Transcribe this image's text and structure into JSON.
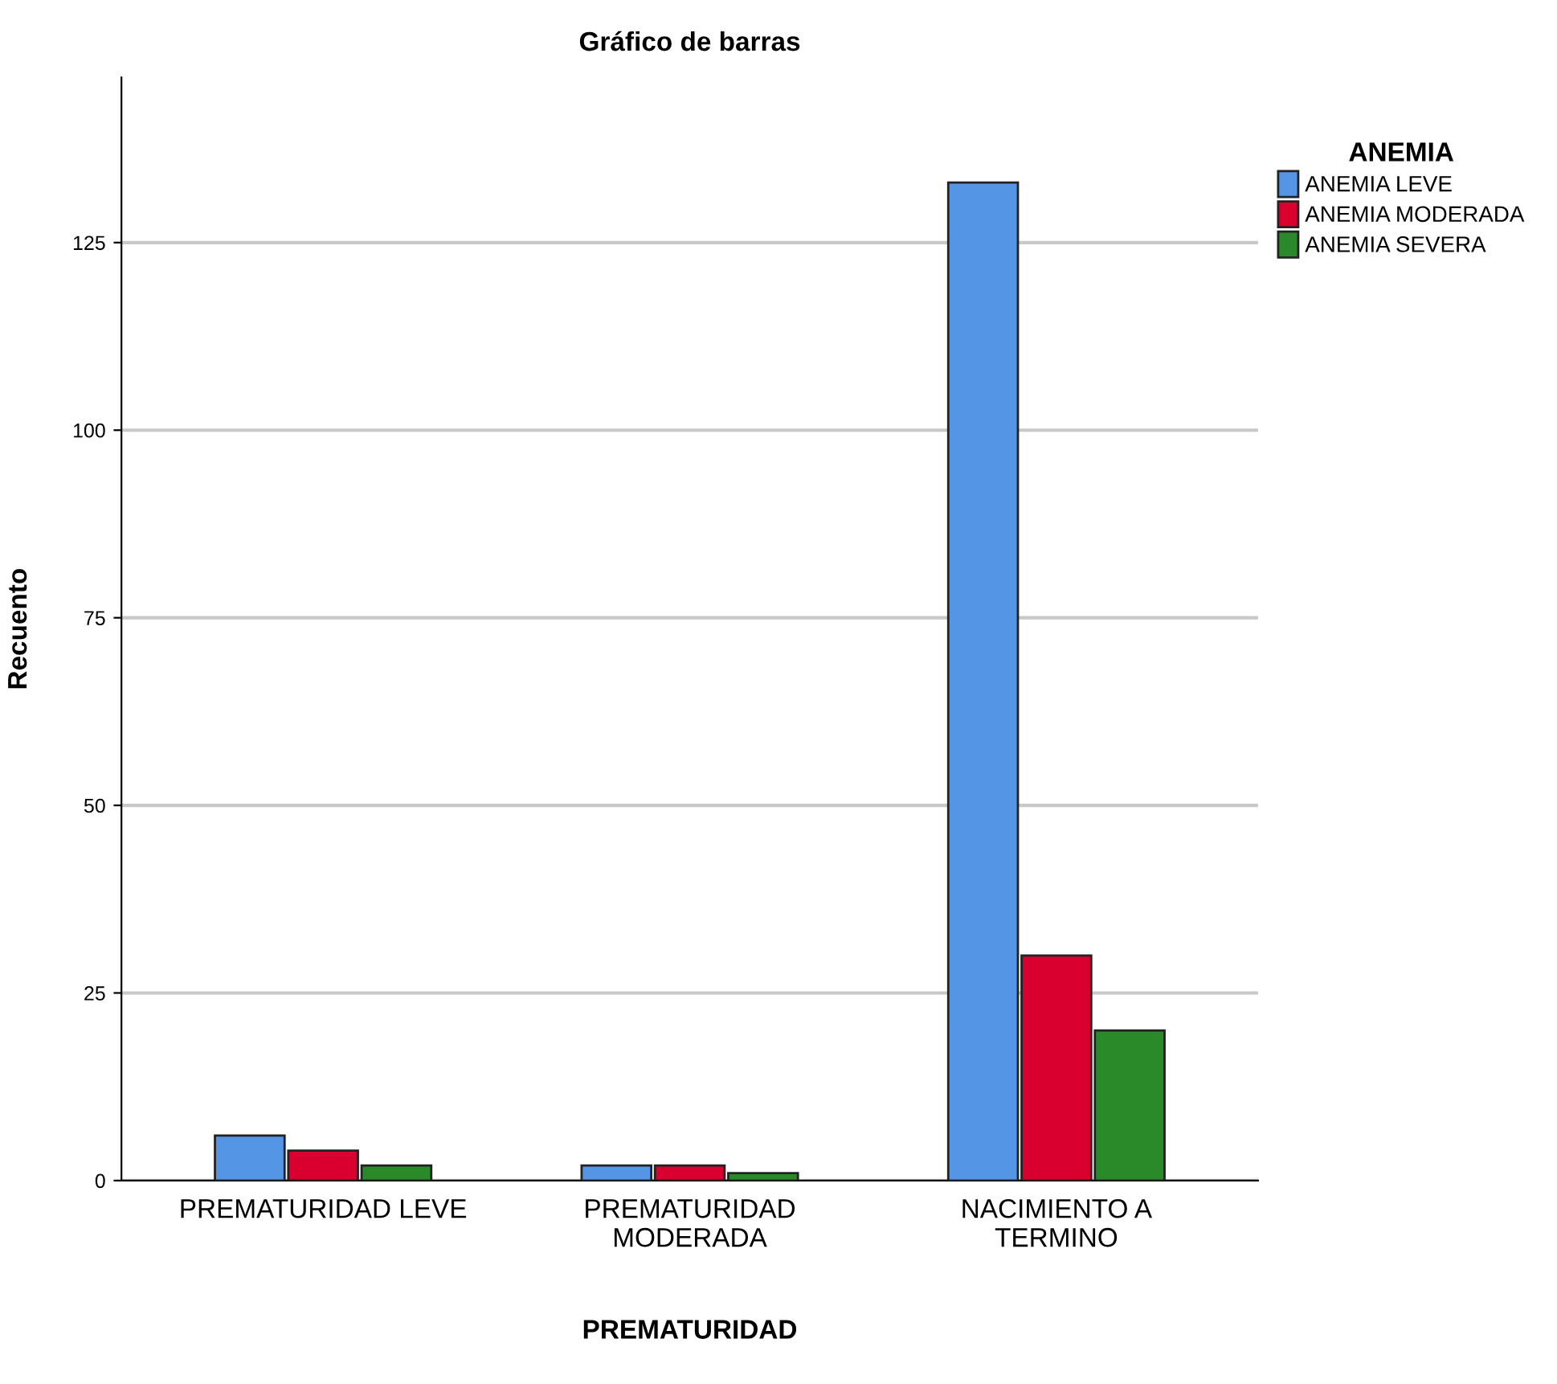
{
  "chart_data": {
    "type": "bar",
    "title": "Gráfico de barras",
    "xlabel": "PREMATURIDAD",
    "ylabel": "Recuento",
    "legend_title": "ANEMIA",
    "categories": [
      "PREMATURIDAD LEVE",
      "PREMATURIDAD\nMODERADA",
      "NACIMIENTO A\nTERMINO"
    ],
    "series": [
      {
        "name": "ANEMIA LEVE",
        "color": "#5595e6",
        "values": [
          6,
          2,
          133
        ]
      },
      {
        "name": "ANEMIA MODERADA",
        "color": "#d9002f",
        "values": [
          4,
          2,
          30
        ]
      },
      {
        "name": "ANEMIA SEVERA",
        "color": "#2a8a2a",
        "values": [
          2,
          1,
          20
        ]
      }
    ],
    "ylim": [
      0,
      147
    ],
    "yticks": [
      0,
      25,
      50,
      75,
      100,
      125
    ],
    "grid": "y",
    "legend": "top right"
  }
}
